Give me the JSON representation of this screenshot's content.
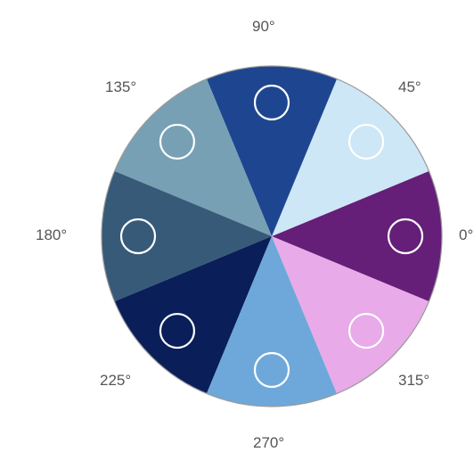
{
  "wheel": {
    "segments": [
      {
        "angle_label": "0°",
        "color": "#651f78"
      },
      {
        "angle_label": "45°",
        "color": "#cde7f6"
      },
      {
        "angle_label": "90°",
        "color": "#1e4690"
      },
      {
        "angle_label": "135°",
        "color": "#78a0b4"
      },
      {
        "angle_label": "180°",
        "color": "#375a78"
      },
      {
        "angle_label": "225°",
        "color": "#0a1e5a"
      },
      {
        "angle_label": "270°",
        "color": "#6ea8da"
      },
      {
        "angle_label": "315°",
        "color": "#e8aae8"
      }
    ],
    "outline_color": "#9a9a9a",
    "marker_color": "#ffffff"
  }
}
